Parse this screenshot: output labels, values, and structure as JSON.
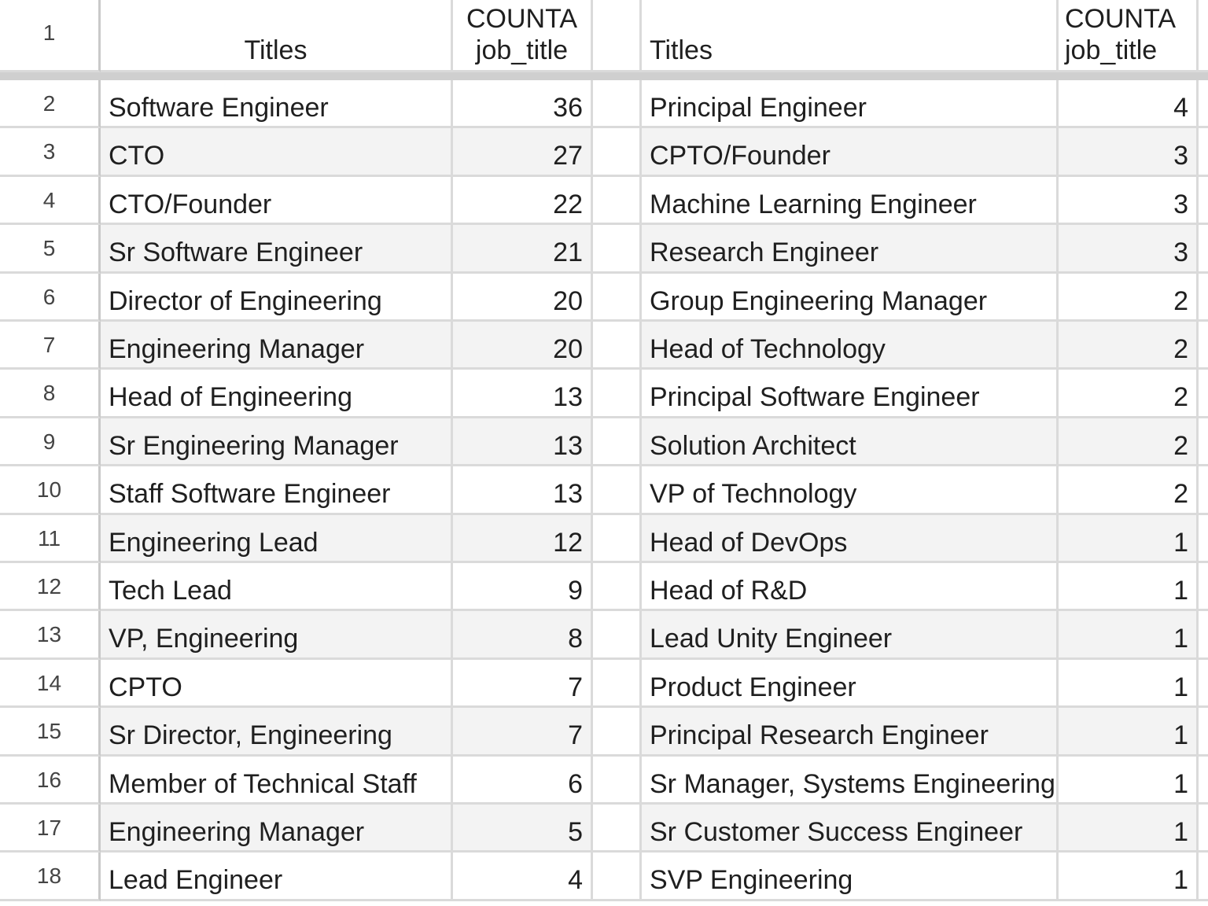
{
  "header": {
    "row_number": "1",
    "left_title": "Titles",
    "left_count_line1": "COUNTA",
    "left_count_line2": "job_title",
    "right_title": "Titles",
    "right_count_line1": "COUNTA",
    "right_count_line2": "job_title"
  },
  "rows": [
    {
      "n": "2",
      "left_title": "Software Engineer",
      "left_count": "36",
      "right_title": "Principal Engineer",
      "right_count": "4"
    },
    {
      "n": "3",
      "left_title": "CTO",
      "left_count": "27",
      "right_title": "CPTO/Founder",
      "right_count": "3"
    },
    {
      "n": "4",
      "left_title": "CTO/Founder",
      "left_count": "22",
      "right_title": "Machine Learning Engineer",
      "right_count": "3"
    },
    {
      "n": "5",
      "left_title": "Sr Software Engineer",
      "left_count": "21",
      "right_title": "Research Engineer",
      "right_count": "3"
    },
    {
      "n": "6",
      "left_title": "Director of Engineering",
      "left_count": "20",
      "right_title": "Group Engineering Manager",
      "right_count": "2"
    },
    {
      "n": "7",
      "left_title": "Engineering Manager",
      "left_count": "20",
      "right_title": "Head of Technology",
      "right_count": "2"
    },
    {
      "n": "8",
      "left_title": "Head of Engineering",
      "left_count": "13",
      "right_title": "Principal Software Engineer",
      "right_count": "2"
    },
    {
      "n": "9",
      "left_title": "Sr Engineering Manager",
      "left_count": "13",
      "right_title": "Solution Architect",
      "right_count": "2"
    },
    {
      "n": "10",
      "left_title": "Staff Software Engineer",
      "left_count": "13",
      "right_title": "VP of Technology",
      "right_count": "2"
    },
    {
      "n": "11",
      "left_title": "Engineering Lead",
      "left_count": "12",
      "right_title": "Head of DevOps",
      "right_count": "1"
    },
    {
      "n": "12",
      "left_title": "Tech Lead",
      "left_count": "9",
      "right_title": "Head of R&D",
      "right_count": "1"
    },
    {
      "n": "13",
      "left_title": "VP, Engineering",
      "left_count": "8",
      "right_title": "Lead Unity Engineer",
      "right_count": "1"
    },
    {
      "n": "14",
      "left_title": "CPTO",
      "left_count": "7",
      "right_title": "Product Engineer",
      "right_count": "1"
    },
    {
      "n": "15",
      "left_title": "Sr Director, Engineering",
      "left_count": "7",
      "right_title": "Principal Research Engineer",
      "right_count": "1"
    },
    {
      "n": "16",
      "left_title": "Member of Technical Staff",
      "left_count": "6",
      "right_title": "Sr Manager, Systems Engineering",
      "right_count": "1"
    },
    {
      "n": "17",
      "left_title": "Engineering Manager",
      "left_count": "5",
      "right_title": "Sr Customer Success Engineer",
      "right_count": "1"
    },
    {
      "n": "18",
      "left_title": "Lead Engineer",
      "left_count": "4",
      "right_title": "SVP Engineering",
      "right_count": "1"
    }
  ]
}
